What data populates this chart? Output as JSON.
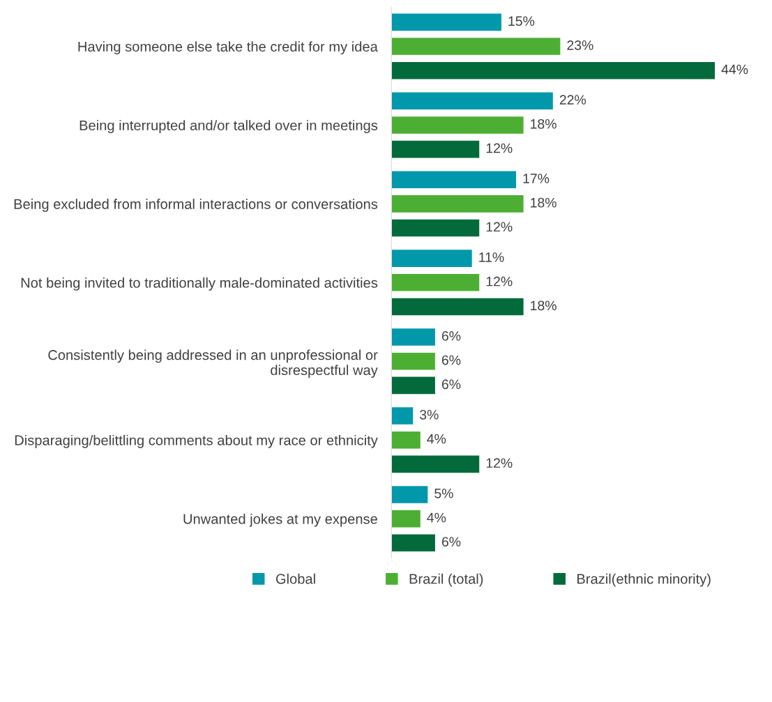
{
  "chart_data": {
    "type": "bar",
    "orientation": "horizontal",
    "categories": [
      "Having someone else take the credit for my idea",
      "Being interrupted and/or talked over in meetings",
      "Being excluded from informal interactions or conversations",
      "Not being invited to traditionally male-dominated activities",
      "Consistently being addressed in an unprofessional or disrespectful way",
      "Disparaging/belittling comments about my race or ethnicity",
      "Unwanted jokes at my expense"
    ],
    "series": [
      {
        "name": "Global",
        "color": "#0098aa",
        "values": [
          15,
          22,
          17,
          11,
          6,
          3,
          5
        ],
        "value_labels": [
          "15%",
          "22%",
          "17%",
          "11%",
          "6%",
          "3%",
          "5%"
        ]
      },
      {
        "name": "Brazil (total)",
        "color": "#4caf33",
        "values": [
          23,
          18,
          18,
          12,
          6,
          4,
          4
        ],
        "value_labels": [
          "23%",
          "18%",
          "18%",
          "12%",
          "6%",
          "4%",
          "4%"
        ]
      },
      {
        "name": "Brazil(ethnic minority)",
        "color": "#036b3b",
        "values": [
          44,
          12,
          12,
          18,
          6,
          12,
          6
        ],
        "value_labels": [
          "44%",
          "12%",
          "12%",
          "18%",
          "6%",
          "12%",
          "6%"
        ]
      }
    ],
    "legend": "bottom",
    "grid": false,
    "tick_labels": "y"
  }
}
